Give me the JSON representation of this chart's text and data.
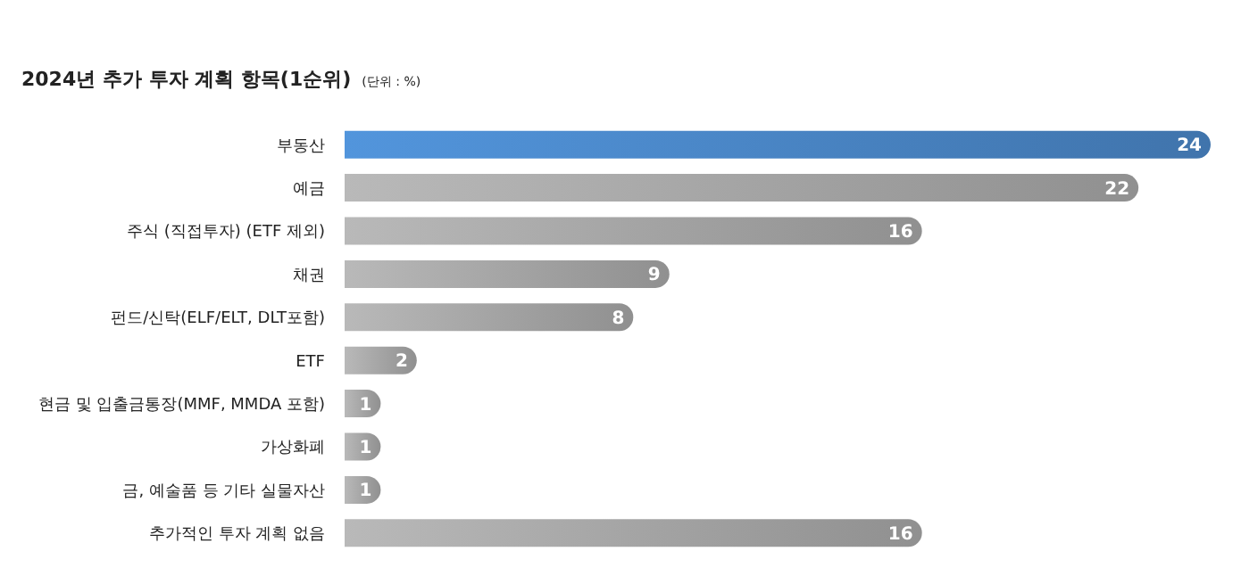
{
  "chart_data": {
    "type": "bar",
    "orientation": "horizontal",
    "title": "2024년 추가 투자 계획 항목(1순위)",
    "subtitle": "(단위 : %)",
    "categories": [
      "부동산",
      "예금",
      "주식 (직접투자) (ETF 제외)",
      "채권",
      "펀드/신탁(ELF/ELT, DLT포함)",
      "ETF",
      "현금 및 입출금통장(MMF, MMDA 포함)",
      "가상화폐",
      "금, 예술품 등 기타 실물자산",
      "추가적인 투자 계획 없음"
    ],
    "values": [
      24,
      22,
      16,
      9,
      8,
      2,
      1,
      1,
      1,
      16
    ],
    "colors": [
      "#4a86c6",
      "#a6a6a6",
      "#a6a6a6",
      "#a6a6a6",
      "#a6a6a6",
      "#a6a6a6",
      "#a6a6a6",
      "#a6a6a6",
      "#a6a6a6",
      "#a6a6a6"
    ],
    "data_labels": true
  }
}
